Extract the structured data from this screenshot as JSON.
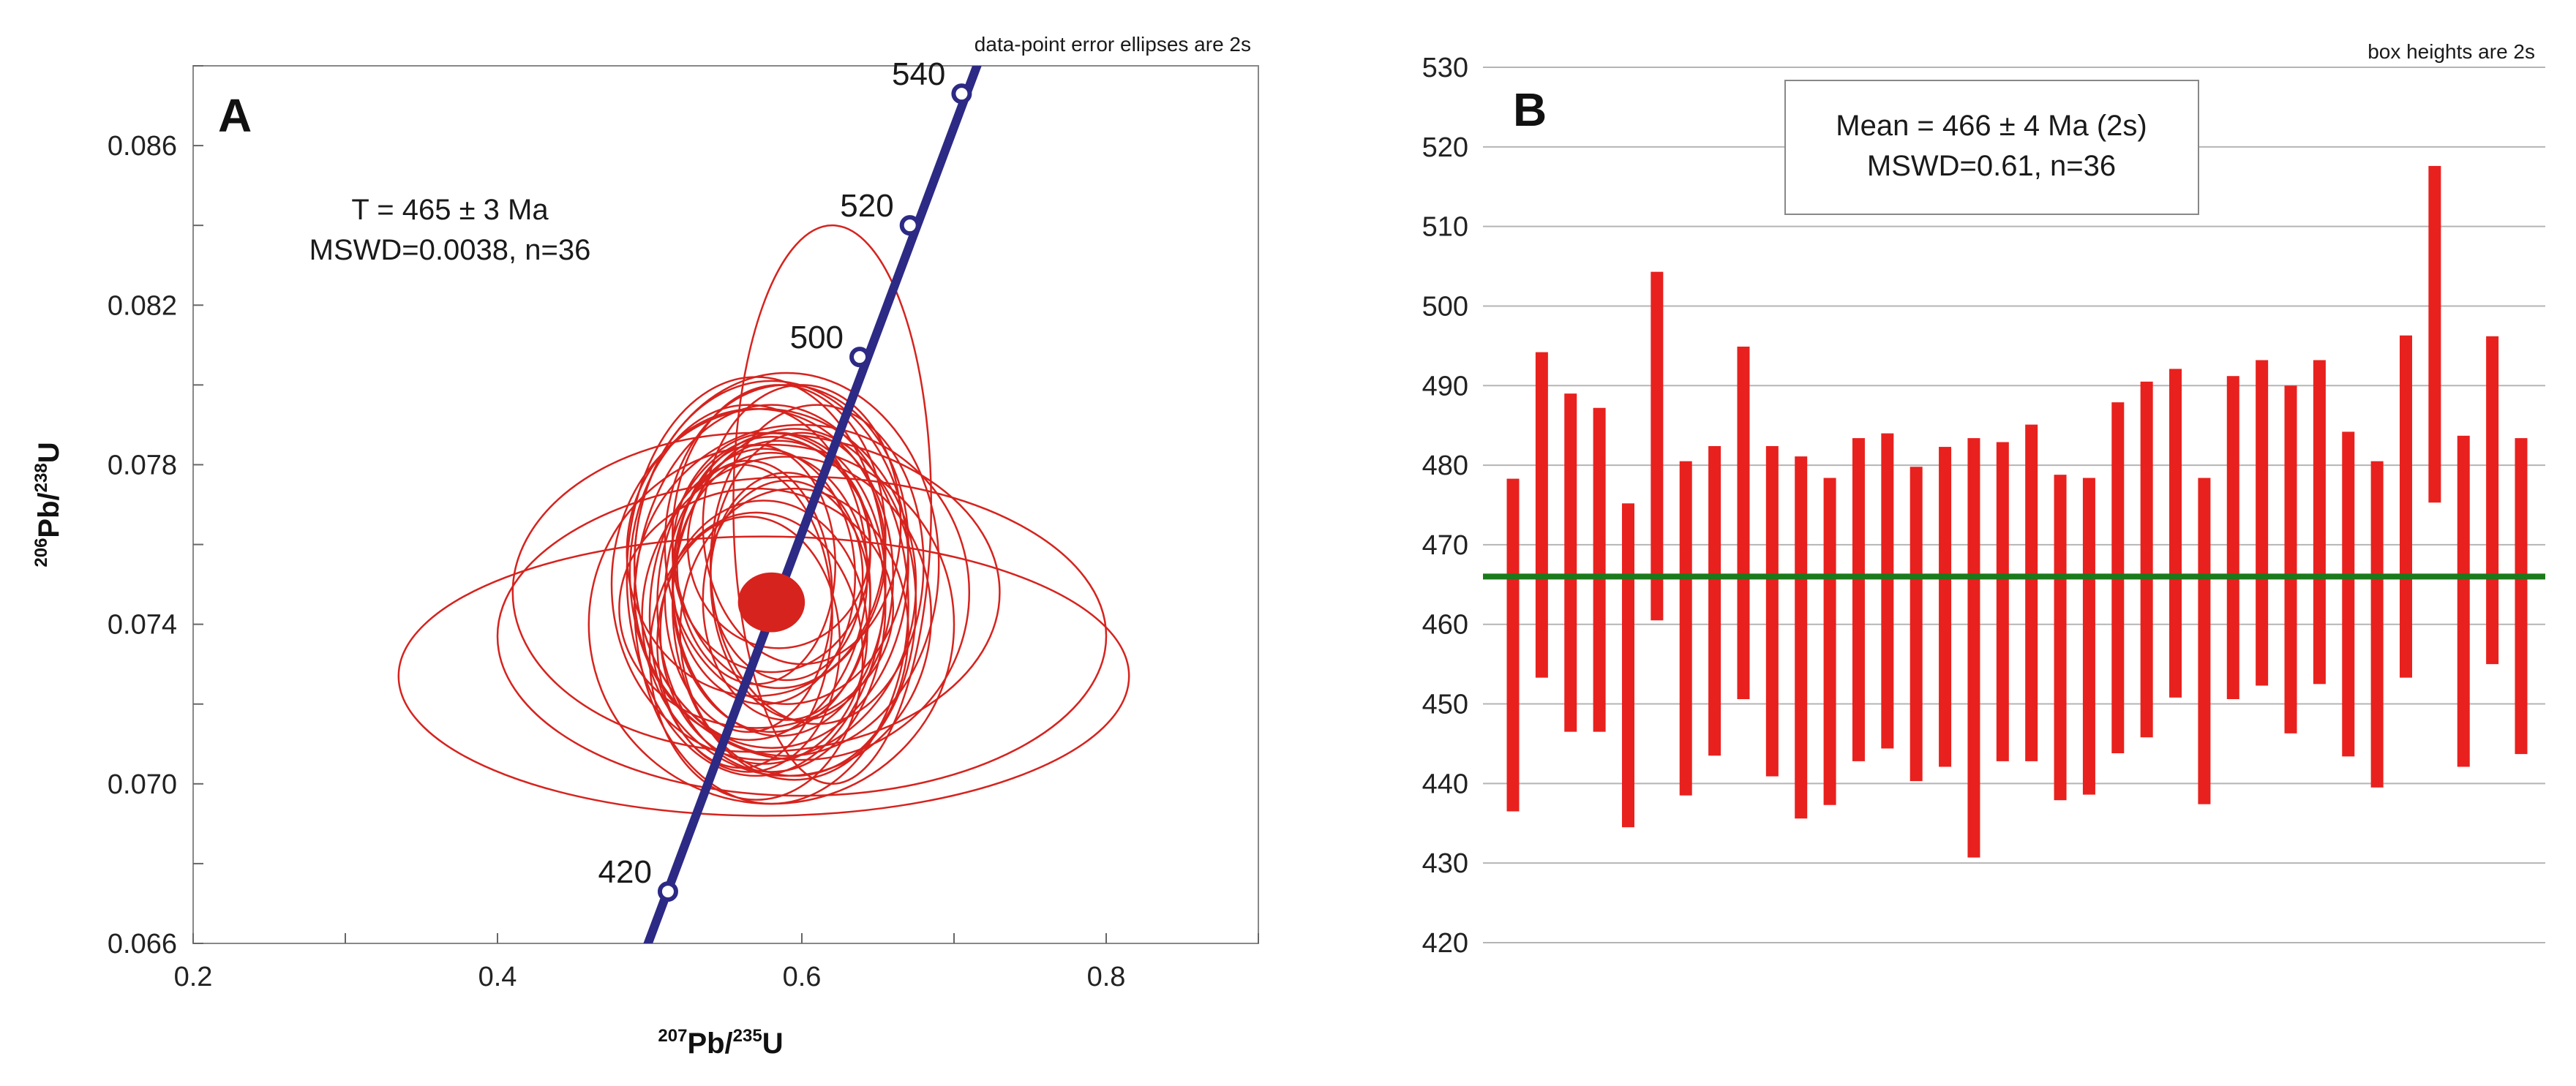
{
  "chart_data": [
    {
      "panel_label": "A",
      "type": "scatter",
      "subtype": "concordia",
      "caption": "data-point error ellipses are 2s",
      "xlabel": {
        "sup1": "207",
        "base1": "Pb/",
        "sup2": "235",
        "base2": "U"
      },
      "ylabel": {
        "sup1": "206",
        "base1": "Pb/",
        "sup2": "238",
        "base2": "U"
      },
      "xlim": [
        0.2,
        0.9
      ],
      "ylim": [
        0.066,
        0.088
      ],
      "x_ticks": [
        0.2,
        0.3,
        0.4,
        0.5,
        0.6,
        0.7,
        0.8,
        0.9
      ],
      "x_tick_labels": [
        "0.2",
        "0.4",
        "0.6",
        "0.8"
      ],
      "y_ticks": [
        0.066,
        0.068,
        0.07,
        0.072,
        0.074,
        0.076,
        0.078,
        0.08,
        0.082,
        0.084,
        0.086,
        0.088
      ],
      "y_tick_labels": [
        "0.066",
        "0.070",
        "0.074",
        "0.078",
        "0.082",
        "0.086"
      ],
      "result_line1": "T = 465 ± 3 Ma",
      "result_line2": "MSWD=0.0038, n=36",
      "concordia_ages": [
        {
          "label": "420",
          "x": 0.512,
          "y": 0.0673
        },
        {
          "label": "500",
          "x": 0.638,
          "y": 0.0807
        },
        {
          "label": "520",
          "x": 0.671,
          "y": 0.084
        },
        {
          "label": "540",
          "x": 0.705,
          "y": 0.0873
        }
      ],
      "concordia_line": [
        [
          0.495,
          0.0656
        ],
        [
          0.72,
          0.0885
        ]
      ],
      "concordia_age": {
        "x": 0.58,
        "y": 0.07455,
        "rx": 0.022,
        "ry": 0.00075
      },
      "ellipses": [
        {
          "cx": 0.62,
          "cy": 0.077,
          "rx": 0.065,
          "ry": 0.007,
          "rot": 0
        },
        {
          "cx": 0.575,
          "cy": 0.0727,
          "rx": 0.24,
          "ry": 0.0035,
          "rot": 0
        },
        {
          "cx": 0.6,
          "cy": 0.0737,
          "rx": 0.2,
          "ry": 0.004,
          "rot": 0
        },
        {
          "cx": 0.57,
          "cy": 0.0748,
          "rx": 0.16,
          "ry": 0.004,
          "rot": 0
        },
        {
          "cx": 0.58,
          "cy": 0.074,
          "rx": 0.12,
          "ry": 0.0045,
          "rot": 0
        },
        {
          "cx": 0.59,
          "cy": 0.0755,
          "rx": 0.1,
          "ry": 0.0048,
          "rot": 0
        },
        {
          "cx": 0.57,
          "cy": 0.0752,
          "rx": 0.085,
          "ry": 0.005,
          "rot": 0
        },
        {
          "cx": 0.59,
          "cy": 0.076,
          "rx": 0.08,
          "ry": 0.004,
          "rot": 0
        },
        {
          "cx": 0.58,
          "cy": 0.0745,
          "rx": 0.075,
          "ry": 0.0042,
          "rot": 0
        },
        {
          "cx": 0.585,
          "cy": 0.075,
          "rx": 0.07,
          "ry": 0.0038,
          "rot": 0
        },
        {
          "cx": 0.58,
          "cy": 0.0748,
          "rx": 0.065,
          "ry": 0.0035,
          "rot": 0
        },
        {
          "cx": 0.575,
          "cy": 0.0752,
          "rx": 0.06,
          "ry": 0.0032,
          "rot": 0
        },
        {
          "cx": 0.59,
          "cy": 0.0746,
          "rx": 0.055,
          "ry": 0.003,
          "rot": 0
        },
        {
          "cx": 0.57,
          "cy": 0.0755,
          "rx": 0.052,
          "ry": 0.003,
          "rot": 0
        },
        {
          "cx": 0.6,
          "cy": 0.0752,
          "rx": 0.06,
          "ry": 0.0036,
          "rot": 0
        },
        {
          "cx": 0.565,
          "cy": 0.0747,
          "rx": 0.055,
          "ry": 0.0034,
          "rot": 0
        },
        {
          "cx": 0.58,
          "cy": 0.0758,
          "rx": 0.065,
          "ry": 0.003,
          "rot": 0
        },
        {
          "cx": 0.575,
          "cy": 0.0738,
          "rx": 0.068,
          "ry": 0.0033,
          "rot": 0
        },
        {
          "cx": 0.61,
          "cy": 0.0755,
          "rx": 0.07,
          "ry": 0.004,
          "rot": 0
        },
        {
          "cx": 0.56,
          "cy": 0.0742,
          "rx": 0.06,
          "ry": 0.0038,
          "rot": 0
        },
        {
          "cx": 0.6,
          "cy": 0.0765,
          "rx": 0.065,
          "ry": 0.0035,
          "rot": 0
        },
        {
          "cx": 0.565,
          "cy": 0.0735,
          "rx": 0.06,
          "ry": 0.0032,
          "rot": 0
        },
        {
          "cx": 0.585,
          "cy": 0.0762,
          "rx": 0.07,
          "ry": 0.0038,
          "rot": 0
        },
        {
          "cx": 0.57,
          "cy": 0.0732,
          "rx": 0.07,
          "ry": 0.0036,
          "rot": 0
        },
        {
          "cx": 0.595,
          "cy": 0.0745,
          "rx": 0.08,
          "ry": 0.0044,
          "rot": 0
        },
        {
          "cx": 0.565,
          "cy": 0.0753,
          "rx": 0.078,
          "ry": 0.0042,
          "rot": 0
        },
        {
          "cx": 0.58,
          "cy": 0.0755,
          "rx": 0.09,
          "ry": 0.0046,
          "rot": 0
        },
        {
          "cx": 0.59,
          "cy": 0.0742,
          "rx": 0.095,
          "ry": 0.004,
          "rot": 0
        },
        {
          "cx": 0.575,
          "cy": 0.075,
          "rx": 0.1,
          "ry": 0.0044,
          "rot": 0
        },
        {
          "cx": 0.6,
          "cy": 0.0748,
          "rx": 0.11,
          "ry": 0.0042,
          "rot": 0
        },
        {
          "cx": 0.58,
          "cy": 0.0745,
          "rx": 0.09,
          "ry": 0.005,
          "rot": 0
        },
        {
          "cx": 0.57,
          "cy": 0.0758,
          "rx": 0.085,
          "ry": 0.0036,
          "rot": 0
        },
        {
          "cx": 0.595,
          "cy": 0.0738,
          "rx": 0.075,
          "ry": 0.0036,
          "rot": 0
        },
        {
          "cx": 0.585,
          "cy": 0.076,
          "rx": 0.06,
          "ry": 0.0026,
          "rot": 0
        },
        {
          "cx": 0.57,
          "cy": 0.0744,
          "rx": 0.09,
          "ry": 0.003,
          "rot": 0
        },
        {
          "cx": 0.59,
          "cy": 0.0752,
          "rx": 0.05,
          "ry": 0.0026,
          "rot": 0
        }
      ]
    },
    {
      "panel_label": "B",
      "type": "bar",
      "subtype": "weighted-mean error bars",
      "caption": "box heights are 2s",
      "ylim": [
        420,
        530
      ],
      "y_ticks": [
        420,
        430,
        440,
        450,
        460,
        470,
        480,
        490,
        500,
        510,
        520,
        530
      ],
      "y_tick_labels": [
        "420",
        "430",
        "440",
        "450",
        "460",
        "470",
        "480",
        "490",
        "500",
        "510",
        "520",
        "530"
      ],
      "grid": true,
      "mean": 466,
      "result_line1": "Mean  = 466 ± 4 Ma (2s)",
      "result_line2": "MSWD=0.61, n=36",
      "mean_line_color": "#1b7a1b",
      "bar_color": "#e8211e",
      "bars": [
        [
          436.5,
          478.3
        ],
        [
          453.3,
          494.2
        ],
        [
          446.5,
          489.0
        ],
        [
          446.5,
          487.2
        ],
        [
          434.5,
          475.2
        ],
        [
          460.5,
          504.3
        ],
        [
          438.5,
          480.5
        ],
        [
          443.5,
          482.4
        ],
        [
          450.6,
          494.9
        ],
        [
          440.9,
          482.4
        ],
        [
          435.6,
          481.1
        ],
        [
          437.3,
          478.4
        ],
        [
          442.8,
          483.4
        ],
        [
          444.4,
          484.0
        ],
        [
          440.3,
          479.8
        ],
        [
          442.1,
          482.3
        ],
        [
          430.7,
          483.4
        ],
        [
          442.8,
          482.9
        ],
        [
          442.8,
          485.1
        ],
        [
          437.9,
          478.8
        ],
        [
          438.6,
          478.4
        ],
        [
          443.8,
          487.9
        ],
        [
          445.8,
          490.5
        ],
        [
          450.8,
          492.1
        ],
        [
          437.4,
          478.4
        ],
        [
          450.6,
          491.2
        ],
        [
          452.3,
          493.2
        ],
        [
          446.3,
          490.0
        ],
        [
          452.5,
          493.2
        ],
        [
          443.4,
          484.2
        ],
        [
          439.5,
          480.5
        ],
        [
          453.3,
          496.3
        ],
        [
          475.3,
          517.6
        ],
        [
          442.1,
          483.7
        ],
        [
          455.0,
          496.2
        ],
        [
          443.7,
          483.4
        ]
      ]
    }
  ]
}
